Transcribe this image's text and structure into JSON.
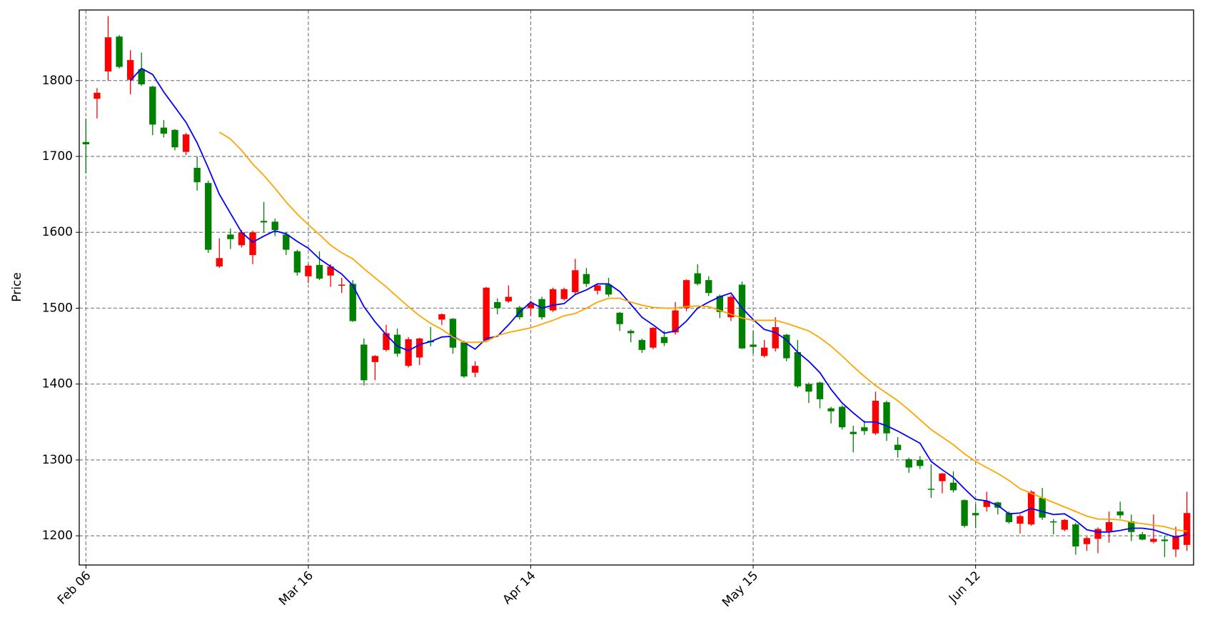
{
  "chart_data": {
    "type": "candlestick",
    "ylabel": "Price",
    "categories": [
      "Feb 06",
      null,
      null,
      null,
      null,
      null,
      null,
      null,
      null,
      null,
      null,
      null,
      null,
      null,
      null,
      null,
      null,
      null,
      null,
      null,
      "Mar 16",
      null,
      null,
      null,
      null,
      null,
      null,
      null,
      null,
      null,
      null,
      null,
      null,
      null,
      null,
      null,
      null,
      null,
      null,
      null,
      "Apr 14",
      null,
      null,
      null,
      null,
      null,
      null,
      null,
      null,
      null,
      null,
      null,
      null,
      null,
      null,
      null,
      null,
      null,
      null,
      null,
      "May 15",
      null,
      null,
      null,
      null,
      null,
      null,
      null,
      null,
      null,
      null,
      null,
      null,
      null,
      null,
      null,
      null,
      null,
      null,
      null,
      "Jun 12",
      null,
      null,
      null,
      null,
      null,
      null,
      null,
      null,
      null,
      null,
      null,
      null,
      null,
      null,
      null,
      null,
      null,
      null,
      null
    ],
    "open": [
      1719,
      1776,
      1812,
      1858,
      1801,
      1815,
      1792,
      1738,
      1735,
      1706,
      1685,
      1665,
      1555,
      1597,
      1583,
      1570,
      1615,
      1614,
      1597,
      1575,
      1542,
      1557,
      1543,
      1530,
      1532,
      1452,
      1429,
      1445,
      1465,
      1424,
      1435,
      1457,
      1485,
      1486,
      1455,
      1415,
      1458,
      1508,
      1509,
      1501,
      1500,
      1512,
      1497,
      1512,
      1521,
      1545,
      1523,
      1531,
      1494,
      1470,
      1458,
      1448,
      1462,
      1468,
      1500,
      1546,
      1537,
      1516,
      1488,
      1531,
      1452,
      1437,
      1447,
      1465,
      1442,
      1400,
      1402,
      1368,
      1370,
      1337,
      1343,
      1335,
      1376,
      1320,
      1301,
      1300,
      1262,
      1272,
      1270,
      1247,
      1230,
      1238,
      1244,
      1230,
      1216,
      1215,
      1250,
      1219,
      1208,
      1215,
      1189,
      1196,
      1206,
      1232,
      1219,
      1202,
      1192,
      1195,
      1182,
      1188
    ],
    "high": [
      1750,
      1790,
      1885,
      1860,
      1840,
      1837,
      1793,
      1748,
      1736,
      1731,
      1700,
      1668,
      1592,
      1605,
      1603,
      1602,
      1640,
      1618,
      1600,
      1577,
      1558,
      1575,
      1558,
      1540,
      1537,
      1460,
      1438,
      1478,
      1473,
      1462,
      1461,
      1475,
      1493,
      1487,
      1457,
      1430,
      1528,
      1513,
      1530,
      1503,
      1510,
      1515,
      1527,
      1527,
      1565,
      1553,
      1531,
      1540,
      1495,
      1472,
      1460,
      1475,
      1470,
      1508,
      1538,
      1558,
      1542,
      1518,
      1517,
      1535,
      1470,
      1458,
      1488,
      1466,
      1458,
      1402,
      1403,
      1370,
      1372,
      1345,
      1352,
      1390,
      1378,
      1330,
      1303,
      1305,
      1294,
      1283,
      1285,
      1248,
      1242,
      1258,
      1245,
      1232,
      1228,
      1260,
      1263,
      1222,
      1222,
      1217,
      1199,
      1211,
      1232,
      1245,
      1228,
      1205,
      1228,
      1200,
      1212,
      1258
    ],
    "low": [
      1678,
      1750,
      1800,
      1816,
      1782,
      1793,
      1728,
      1725,
      1708,
      1702,
      1655,
      1573,
      1553,
      1578,
      1580,
      1558,
      1600,
      1595,
      1570,
      1543,
      1533,
      1537,
      1528,
      1520,
      1482,
      1398,
      1405,
      1443,
      1436,
      1422,
      1425,
      1450,
      1478,
      1440,
      1408,
      1409,
      1455,
      1492,
      1507,
      1485,
      1490,
      1485,
      1495,
      1510,
      1518,
      1528,
      1518,
      1515,
      1470,
      1455,
      1441,
      1446,
      1450,
      1465,
      1496,
      1530,
      1516,
      1487,
      1483,
      1446,
      1440,
      1435,
      1443,
      1430,
      1395,
      1375,
      1368,
      1348,
      1340,
      1310,
      1333,
      1333,
      1325,
      1303,
      1283,
      1288,
      1250,
      1256,
      1257,
      1211,
      1210,
      1232,
      1228,
      1216,
      1203,
      1213,
      1221,
      1202,
      1206,
      1175,
      1180,
      1177,
      1191,
      1223,
      1193,
      1194,
      1190,
      1172,
      1172,
      1180
    ],
    "close": [
      1716,
      1784,
      1857,
      1818,
      1827,
      1795,
      1742,
      1730,
      1712,
      1729,
      1666,
      1577,
      1566,
      1591,
      1600,
      1600,
      1613,
      1603,
      1577,
      1547,
      1556,
      1539,
      1555,
      1531,
      1483,
      1405,
      1437,
      1467,
      1440,
      1459,
      1460,
      1455,
      1492,
      1448,
      1410,
      1424,
      1527,
      1500,
      1515,
      1488,
      1506,
      1488,
      1525,
      1525,
      1550,
      1532,
      1530,
      1518,
      1479,
      1467,
      1445,
      1474,
      1454,
      1497,
      1537,
      1532,
      1520,
      1495,
      1515,
      1447,
      1449,
      1448,
      1475,
      1434,
      1397,
      1390,
      1380,
      1364,
      1343,
      1334,
      1338,
      1378,
      1335,
      1313,
      1290,
      1292,
      1261,
      1282,
      1260,
      1213,
      1227,
      1246,
      1237,
      1218,
      1226,
      1258,
      1224,
      1218,
      1221,
      1186,
      1197,
      1209,
      1218,
      1227,
      1205,
      1195,
      1196,
      1193,
      1200,
      1230
    ],
    "up_color": "#ff0000",
    "down_color": "#008000",
    "lines": [
      {
        "color": "#0000ff",
        "values": [
          null,
          null,
          null,
          null,
          1800,
          1816,
          1808,
          1785,
          1765,
          1745,
          1718,
          1685,
          1650,
          1625,
          1600,
          1587,
          1595,
          1602,
          1598,
          1588,
          1579,
          1565,
          1555,
          1545,
          1530,
          1502,
          1482,
          1465,
          1450,
          1444,
          1452,
          1456,
          1462,
          1463,
          1455,
          1446,
          1460,
          1463,
          1478,
          1495,
          1508,
          1500,
          1504,
          1506,
          1518,
          1524,
          1532,
          1532,
          1522,
          1505,
          1488,
          1478,
          1467,
          1470,
          1483,
          1500,
          1508,
          1515,
          1520,
          1500,
          1485,
          1472,
          1468,
          1458,
          1442,
          1430,
          1415,
          1393,
          1375,
          1362,
          1350,
          1350,
          1345,
          1338,
          1330,
          1322,
          1298,
          1287,
          1277,
          1262,
          1248,
          1246,
          1240,
          1229,
          1230,
          1236,
          1232,
          1228,
          1229,
          1220,
          1208,
          1205,
          1205,
          1207,
          1210,
          1210,
          1208,
          1203,
          1198,
          1202
        ]
      },
      {
        "color": "#ffa500",
        "values": [
          null,
          null,
          null,
          null,
          null,
          null,
          null,
          null,
          null,
          null,
          null,
          null,
          1732,
          1723,
          1708,
          1690,
          1675,
          1658,
          1640,
          1624,
          1610,
          1597,
          1583,
          1573,
          1565,
          1552,
          1540,
          1528,
          1515,
          1502,
          1490,
          1480,
          1472,
          1462,
          1455,
          1455,
          1456,
          1464,
          1468,
          1471,
          1474,
          1479,
          1484,
          1490,
          1493,
          1500,
          1508,
          1513,
          1513,
          1508,
          1504,
          1501,
          1500,
          1500,
          1502,
          1503,
          1502,
          1497,
          1492,
          1487,
          1484,
          1484,
          1484,
          1480,
          1475,
          1470,
          1461,
          1450,
          1437,
          1423,
          1410,
          1398,
          1388,
          1378,
          1366,
          1353,
          1340,
          1330,
          1320,
          1308,
          1298,
          1290,
          1282,
          1273,
          1262,
          1256,
          1250,
          1244,
          1238,
          1232,
          1226,
          1222,
          1222,
          1221,
          1218,
          1216,
          1214,
          1212,
          1208,
          1206
        ]
      }
    ],
    "ylim": [
      1161.5,
      1893
    ],
    "yticks": [
      1200,
      1300,
      1400,
      1500,
      1600,
      1700,
      1800
    ],
    "grid": true
  }
}
